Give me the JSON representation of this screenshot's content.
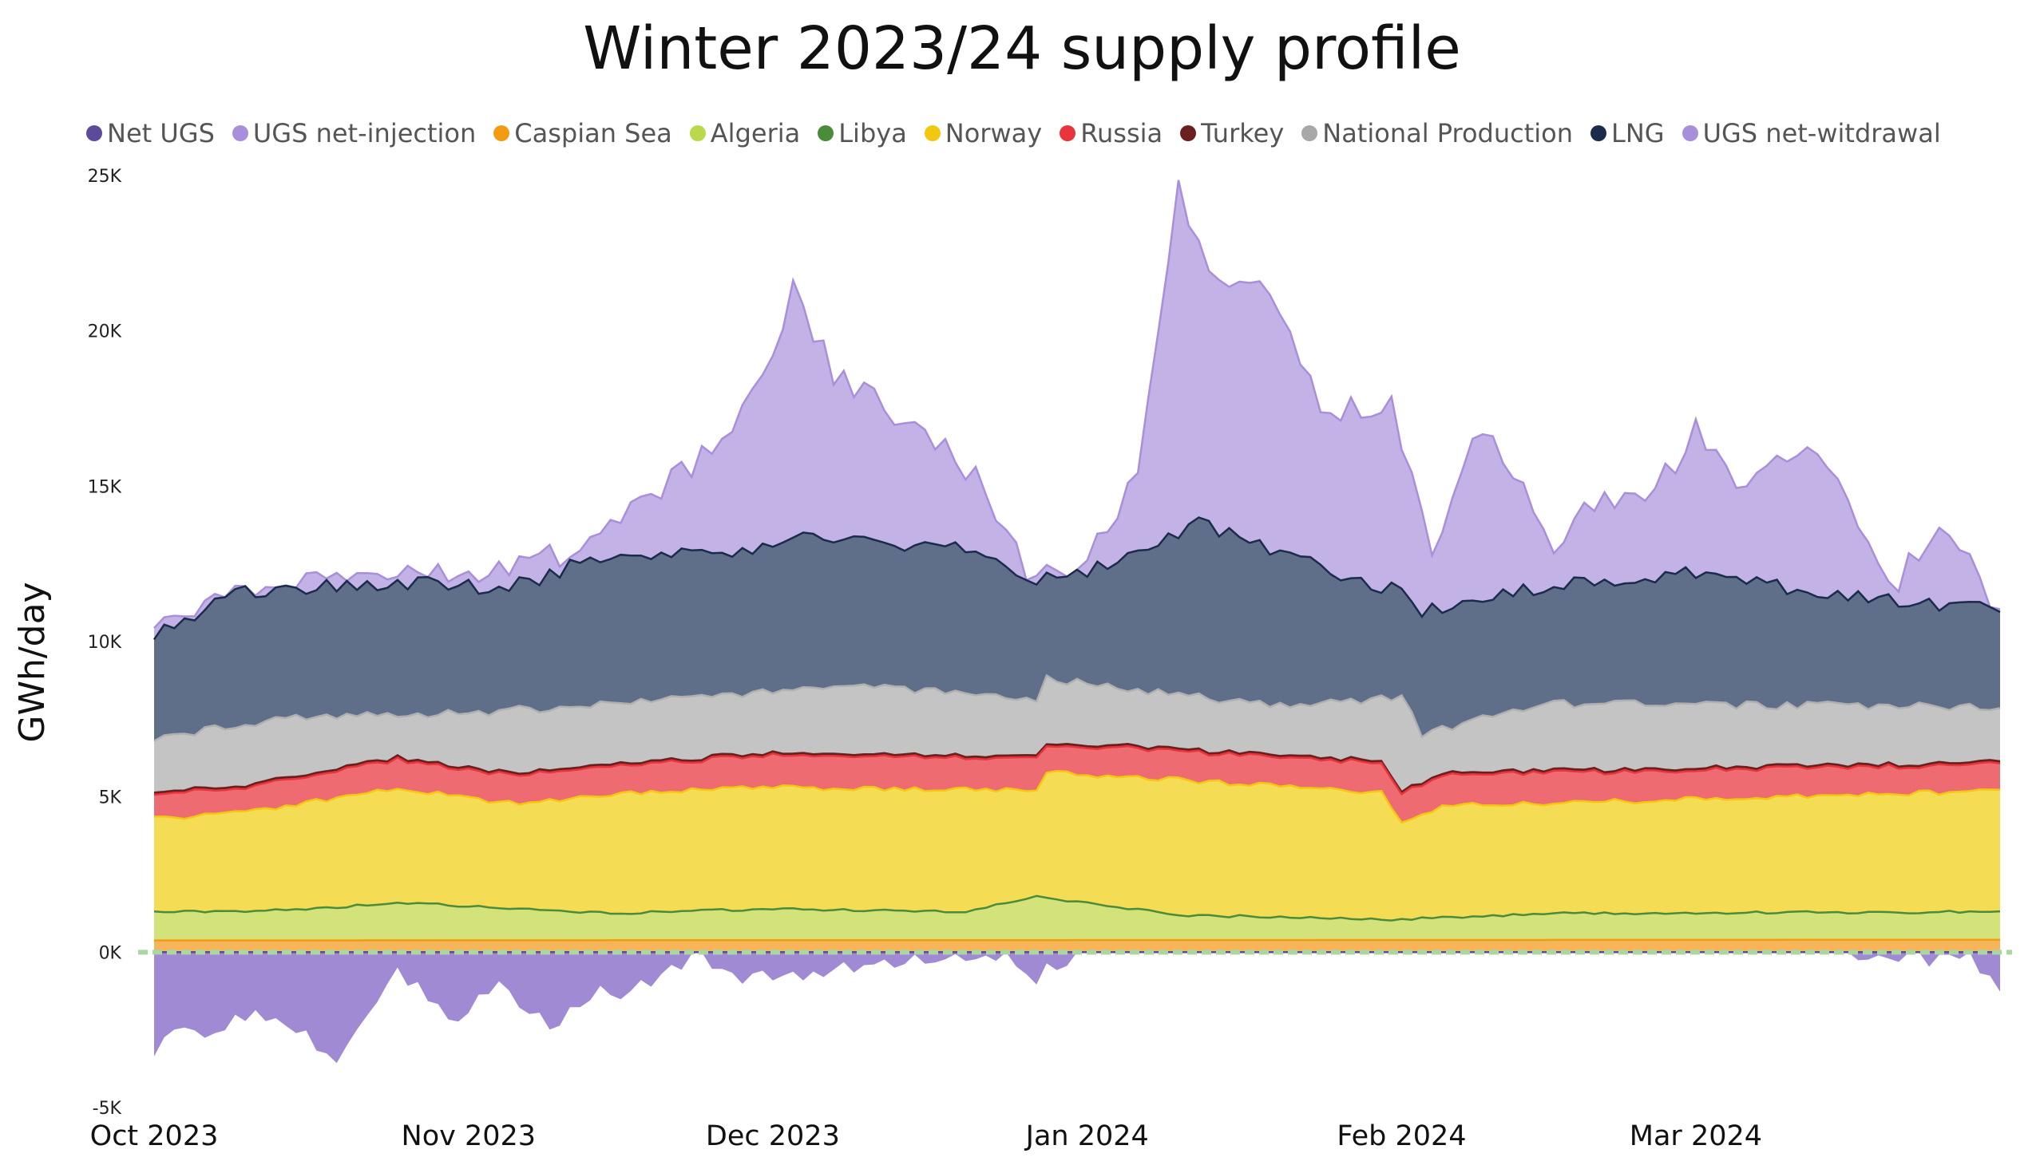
{
  "chart_data": {
    "type": "area",
    "title": "Winter 2023/24 supply profile",
    "ylabel": "GWh/day",
    "xlabel": "",
    "ylim": [
      -5000,
      25000
    ],
    "xlim": [
      "2023-10-01",
      "2024-03-31"
    ],
    "yticks": [
      {
        "value": -5000,
        "label": "-5K"
      },
      {
        "value": 0,
        "label": "0K"
      },
      {
        "value": 5000,
        "label": "5K"
      },
      {
        "value": 10000,
        "label": "10K"
      },
      {
        "value": 15000,
        "label": "15K"
      },
      {
        "value": 20000,
        "label": "20K"
      },
      {
        "value": 25000,
        "label": "25K"
      }
    ],
    "xticks": [
      {
        "date": "2023-10-01",
        "label": "Oct 2023"
      },
      {
        "date": "2023-11-01",
        "label": "Nov 2023"
      },
      {
        "date": "2023-12-01",
        "label": "Dec 2023"
      },
      {
        "date": "2024-01-01",
        "label": "Jan 2024"
      },
      {
        "date": "2024-02-01",
        "label": "Feb 2024"
      },
      {
        "date": "2024-03-01",
        "label": "Mar 2024"
      }
    ],
    "legend_position": "top",
    "legend": [
      {
        "name": "Net UGS",
        "color": "#5e4a9c"
      },
      {
        "name": "UGS net-injection",
        "color": "#a98fdb"
      },
      {
        "name": "Caspian Sea",
        "color": "#f39c12"
      },
      {
        "name": "Algeria",
        "color": "#b7d94a"
      },
      {
        "name": "Libya",
        "color": "#4a8c3a"
      },
      {
        "name": "Norway",
        "color": "#f2c811"
      },
      {
        "name": "Russia",
        "color": "#e8343a"
      },
      {
        "name": "Turkey",
        "color": "#6b1f1f"
      },
      {
        "name": "National Production",
        "color": "#a8a8a8"
      },
      {
        "name": "LNG",
        "color": "#1a2b4c"
      },
      {
        "name": "UGS net-witdrawal",
        "color": "#a98fdb"
      }
    ],
    "anchors": {
      "caspian": {
        "x": [
          "2023-10-01",
          "2024-03-31"
        ],
        "y": [
          380,
          400
        ]
      },
      "algeria": {
        "x": [
          "2023-10-01",
          "2023-10-15",
          "2023-10-25",
          "2023-11-15",
          "2023-12-01",
          "2023-12-20",
          "2023-12-27",
          "2024-01-10",
          "2024-01-31",
          "2024-02-15",
          "2024-03-31"
        ],
        "y": [
          1300,
          1350,
          1600,
          1250,
          1400,
          1300,
          1800,
          1200,
          1050,
          1250,
          1300
        ]
      },
      "norway": {
        "x": [
          "2023-10-01",
          "2023-10-10",
          "2023-10-25",
          "2023-11-05",
          "2023-11-20",
          "2023-12-01",
          "2023-12-27",
          "2023-12-28",
          "2024-01-30",
          "2024-02-01",
          "2024-02-05",
          "2024-03-31"
        ],
        "y": [
          4300,
          4500,
          5300,
          4800,
          5200,
          5300,
          5200,
          5800,
          5150,
          4200,
          4700,
          5200
        ]
      },
      "russia": {
        "x": [
          "2023-10-01",
          "2023-10-10",
          "2023-10-25",
          "2023-11-05",
          "2023-11-20",
          "2023-12-01",
          "2023-12-27",
          "2023-12-28",
          "2024-01-30",
          "2024-02-01",
          "2024-02-05",
          "2024-03-31"
        ],
        "y": [
          5100,
          5300,
          6200,
          5700,
          6100,
          6350,
          6200,
          6700,
          6100,
          5100,
          5700,
          6050
        ]
      },
      "national": {
        "x": [
          "2023-10-01",
          "2023-10-15",
          "2023-11-01",
          "2023-11-20",
          "2023-12-10",
          "2023-12-27",
          "2023-12-28",
          "2024-01-20",
          "2024-02-01",
          "2024-02-03",
          "2024-02-15",
          "2024-03-31"
        ],
        "y": [
          6900,
          7600,
          7700,
          8100,
          8600,
          8100,
          8800,
          7900,
          8200,
          7000,
          8000,
          7900
        ]
      },
      "lng": {
        "x": [
          "2023-10-01",
          "2023-10-09",
          "2023-10-25",
          "2023-11-05",
          "2023-11-15",
          "2023-11-27",
          "2023-12-03",
          "2023-12-10",
          "2023-12-20",
          "2023-12-26",
          "2024-01-01",
          "2024-01-12",
          "2024-01-20",
          "2024-01-31",
          "2024-02-03",
          "2024-02-15",
          "2024-03-01",
          "2024-03-15",
          "2024-03-31"
        ],
        "y": [
          10200,
          11600,
          11900,
          11700,
          12900,
          12800,
          13500,
          13200,
          13000,
          12000,
          12200,
          13800,
          12800,
          11700,
          11000,
          11800,
          12200,
          11500,
          11000
        ]
      },
      "top": {
        "x": [
          "2023-10-01",
          "2023-10-09",
          "2023-10-25",
          "2023-11-05",
          "2023-11-15",
          "2023-11-22",
          "2023-11-27",
          "2023-12-03",
          "2023-12-07",
          "2023-12-12",
          "2023-12-17",
          "2023-12-22",
          "2023-12-26",
          "2024-01-01",
          "2024-01-06",
          "2024-01-10",
          "2024-01-14",
          "2024-01-18",
          "2024-01-24",
          "2024-01-31",
          "2024-02-04",
          "2024-02-08",
          "2024-02-12",
          "2024-02-16",
          "2024-02-20",
          "2024-02-25",
          "2024-03-01",
          "2024-03-05",
          "2024-03-10",
          "2024-03-15",
          "2024-03-20",
          "2024-03-25",
          "2024-03-31"
        ],
        "y": [
          10200,
          11600,
          12000,
          12200,
          13500,
          15500,
          16500,
          21200,
          18600,
          17500,
          16500,
          15000,
          12000,
          12500,
          15500,
          24500,
          21500,
          22000,
          17500,
          17500,
          13000,
          16800,
          15600,
          13000,
          14500,
          14300,
          16800,
          15000,
          16100,
          15600,
          11500,
          13800,
          11000
        ]
      },
      "netugs": {
        "x": [
          "2023-10-01",
          "2023-10-03",
          "2023-10-06",
          "2023-10-10",
          "2023-10-15",
          "2023-10-19",
          "2023-10-25",
          "2023-10-31",
          "2023-11-04",
          "2023-11-09",
          "2023-11-13",
          "2023-11-17",
          "2023-11-24",
          "2023-11-27",
          "2023-12-24",
          "2023-12-27",
          "2023-12-31",
          "2024-03-16",
          "2024-03-18",
          "2024-03-23",
          "2024-03-24",
          "2024-03-28",
          "2024-03-31"
        ],
        "y": [
          -3200,
          -2300,
          -2900,
          -2000,
          -2500,
          -3400,
          -700,
          -2200,
          -1000,
          -2400,
          -1300,
          -1300,
          0,
          -900,
          0,
          -800,
          0,
          0,
          -200,
          0,
          -400,
          0,
          -1500
        ]
      }
    }
  }
}
